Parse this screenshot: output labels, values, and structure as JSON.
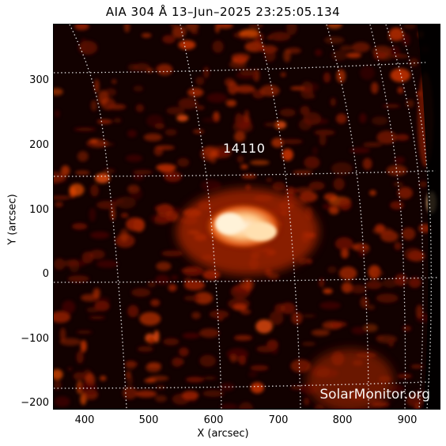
{
  "title": "AIA 304 Å 13–Jun–2025 23:25:05.134",
  "x_axis_label": "X (arcsec)",
  "y_axis_label": "Y (arcsec)",
  "x_ticks": [
    "400",
    "500",
    "600",
    "700",
    "800",
    "900"
  ],
  "y_ticks": [
    "300",
    "200",
    "100",
    "0",
    "−100",
    "−200"
  ],
  "active_region": "14110",
  "watermark": "SolarMonitor.org",
  "colors": {
    "background": "#0a0000",
    "emission_dim": "#5a0a00",
    "emission_mid": "#c83200",
    "emission_bright": "#ffd8a0",
    "grid": "#ffffff"
  }
}
